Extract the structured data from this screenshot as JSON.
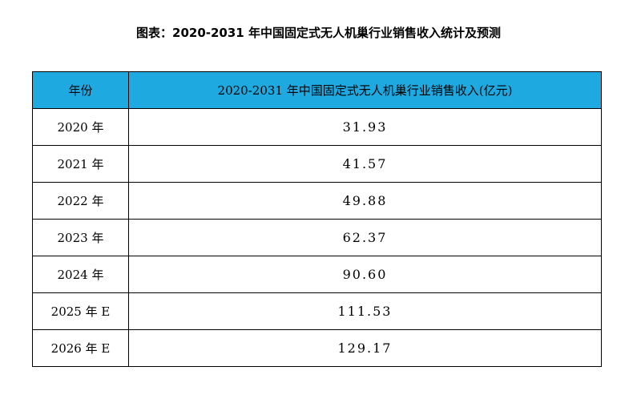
{
  "title": "图表：2020-2031 年中国固定式无人机巢行业销售收入统计及预测",
  "table": {
    "header": [
      "年份",
      "2020-2031 年中国固定式无人机巢行业销售收入(亿元)"
    ],
    "rows": [
      [
        "2020 年",
        "31.93"
      ],
      [
        "2021 年",
        "41.57"
      ],
      [
        "2022 年",
        "49.88"
      ],
      [
        "2023 年",
        "62.37"
      ],
      [
        "2024 年",
        "90.60"
      ],
      [
        "2025 年 E",
        "111.53"
      ],
      [
        "2026 年 E",
        "129.17"
      ]
    ]
  }
}
